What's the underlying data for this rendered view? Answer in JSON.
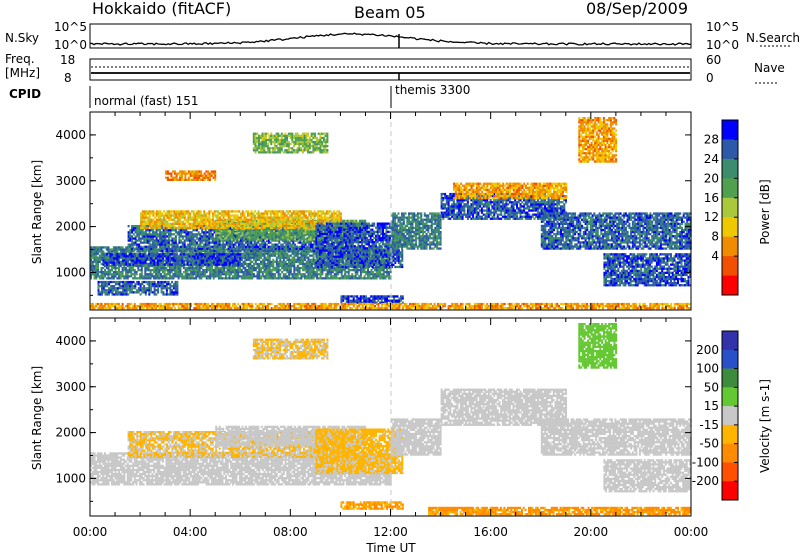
{
  "header": {
    "station": "Hokkaido (fitACF)",
    "beam": "Beam 05",
    "date": "08/Sep/2009"
  },
  "housekeeping": {
    "nsky_label": "N.Sky",
    "nsky_ticks": [
      "10^5",
      "10^0"
    ],
    "nsearch_label": "N.Search",
    "freq_label_1": "Freq.",
    "freq_label_2": "[MHz]",
    "freq_ticks": [
      "18",
      "8"
    ],
    "nave_label": "Nave",
    "nave_ticks": [
      "60",
      "0"
    ],
    "cpid_label": "CPID",
    "cpid_segments": [
      {
        "name": "normal (fast) 151",
        "start_hour": 0,
        "end_hour": 12
      },
      {
        "name": "themis 3300",
        "start_hour": 12,
        "end_hour": 24
      }
    ]
  },
  "colors": {
    "power_scale": [
      "#0000ff",
      "#2d5aa8",
      "#3c8c6e",
      "#50a050",
      "#aac83c",
      "#f0c800",
      "#f08c00",
      "#f05000",
      "#ff0000"
    ],
    "velocity_scale": [
      "#3232aa",
      "#2850c8",
      "#3c8c3c",
      "#64c832",
      "#c8c8c8",
      "#ffb400",
      "#ff8c00",
      "#ff5000",
      "#ff0000"
    ]
  },
  "chart_data": [
    {
      "type": "heatmap",
      "name": "power",
      "xlabel": "Time UT",
      "ylabel": "Slant Range [km]",
      "colorbar_label": "Power [dB]",
      "colorbar_ticks": [
        "28",
        "24",
        "20",
        "16",
        "12",
        "8",
        "4"
      ],
      "colorbar_range": [
        0,
        32
      ],
      "xlim": [
        0,
        24
      ],
      "ylim": [
        180,
        4500
      ],
      "x_ticks": [
        "00:00",
        "04:00",
        "08:00",
        "12:00",
        "16:00",
        "20:00",
        "00:00"
      ],
      "y_ticks": [
        "1000",
        "2000",
        "3000",
        "4000"
      ],
      "bands": [
        {
          "t": [
            0.0,
            12.0
          ],
          "r": [
            850,
            1550
          ],
          "v": 24
        },
        {
          "t": [
            0.5,
            6.0
          ],
          "r": [
            1150,
            1400
          ],
          "v": 28
        },
        {
          "t": [
            1.5,
            10.5
          ],
          "r": [
            1450,
            2000
          ],
          "v": 26
        },
        {
          "t": [
            5.0,
            11.0
          ],
          "r": [
            1700,
            2150
          ],
          "v": 20
        },
        {
          "t": [
            2.0,
            10.0
          ],
          "r": [
            1950,
            2350
          ],
          "v": 12
        },
        {
          "t": [
            9.0,
            12.5
          ],
          "r": [
            1100,
            2050
          ],
          "v": 27
        },
        {
          "t": [
            12.0,
            14.0
          ],
          "r": [
            1500,
            2300
          ],
          "v": 24
        },
        {
          "t": [
            14.0,
            19.0
          ],
          "r": [
            2150,
            2700
          ],
          "v": 27
        },
        {
          "t": [
            14.5,
            19.0
          ],
          "r": [
            2600,
            2950
          ],
          "v": 10
        },
        {
          "t": [
            18.0,
            24.0
          ],
          "r": [
            1500,
            2300
          ],
          "v": 26
        },
        {
          "t": [
            20.5,
            24.0
          ],
          "r": [
            700,
            1400
          ],
          "v": 27
        },
        {
          "t": [
            0.3,
            3.5
          ],
          "r": [
            500,
            800
          ],
          "v": 26
        },
        {
          "t": [
            10.0,
            12.5
          ],
          "r": [
            320,
            480
          ],
          "v": 28
        },
        {
          "t": [
            6.5,
            9.5
          ],
          "r": [
            3600,
            4050
          ],
          "v": 18
        },
        {
          "t": [
            19.5,
            21.0
          ],
          "r": [
            3400,
            4350
          ],
          "v": 10
        },
        {
          "t": [
            3.0,
            5.0
          ],
          "r": [
            3000,
            3200
          ],
          "v": 8
        },
        {
          "t": [
            0.0,
            24.0
          ],
          "r": [
            200,
            320
          ],
          "v": 10
        }
      ]
    },
    {
      "type": "heatmap",
      "name": "velocity",
      "xlabel": "Time UT",
      "ylabel": "Slant Range [km]",
      "colorbar_label": "Velocity [m s-1]",
      "colorbar_ticks": [
        "200",
        "100",
        "50",
        "15",
        "-15",
        "-50",
        "-100",
        "-200"
      ],
      "colorbar_range": [
        -250,
        250
      ],
      "xlim": [
        0,
        24
      ],
      "ylim": [
        180,
        4500
      ],
      "x_ticks": [
        "00:00",
        "04:00",
        "08:00",
        "12:00",
        "16:00",
        "20:00",
        "00:00"
      ],
      "y_ticks": [
        "1000",
        "2000",
        "3000",
        "4000"
      ],
      "bands": [
        {
          "t": [
            0.0,
            12.0
          ],
          "r": [
            850,
            1550
          ],
          "v": 0
        },
        {
          "t": [
            1.5,
            10.5
          ],
          "r": [
            1450,
            2000
          ],
          "v": -30
        },
        {
          "t": [
            5.0,
            11.0
          ],
          "r": [
            1700,
            2150
          ],
          "v": 0
        },
        {
          "t": [
            9.0,
            12.5
          ],
          "r": [
            1100,
            2050
          ],
          "v": -40
        },
        {
          "t": [
            12.0,
            14.0
          ],
          "r": [
            1500,
            2300
          ],
          "v": 0
        },
        {
          "t": [
            14.0,
            19.0
          ],
          "r": [
            2150,
            2950
          ],
          "v": 0
        },
        {
          "t": [
            18.0,
            24.0
          ],
          "r": [
            1500,
            2300
          ],
          "v": 0
        },
        {
          "t": [
            20.5,
            24.0
          ],
          "r": [
            700,
            1400
          ],
          "v": 0
        },
        {
          "t": [
            6.5,
            9.5
          ],
          "r": [
            3600,
            4050
          ],
          "v": -30
        },
        {
          "t": [
            19.5,
            21.0
          ],
          "r": [
            3400,
            4350
          ],
          "v": 60
        },
        {
          "t": [
            10.0,
            12.5
          ],
          "r": [
            320,
            480
          ],
          "v": -80
        },
        {
          "t": [
            13.5,
            24.0
          ],
          "r": [
            200,
            350
          ],
          "v": -90
        }
      ]
    }
  ]
}
